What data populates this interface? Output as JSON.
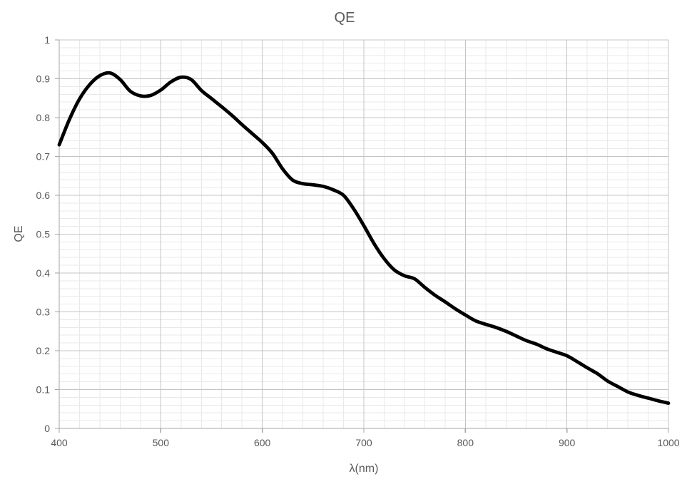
{
  "style": {
    "background": "#ffffff",
    "text_color": "#595959",
    "axis_color": "#a6a6a6",
    "major_grid_color": "#c4c4c4",
    "minor_grid_color": "#e9e9e9",
    "curve_color": "#000000",
    "curve_width": 4.8
  },
  "chart_data": {
    "type": "line",
    "title": "QE",
    "xlabel": "λ(nm)",
    "ylabel": "QE",
    "xlim": [
      400,
      1000
    ],
    "ylim": [
      0,
      1
    ],
    "x_major_step": 100,
    "x_minor_step": 20,
    "y_major_step": 0.1,
    "y_minor_step": 0.02,
    "x_tick_labels": [
      "400",
      "500",
      "600",
      "700",
      "800",
      "900",
      "1000"
    ],
    "y_tick_labels": [
      "0",
      "0.1",
      "0.2",
      "0.3",
      "0.4",
      "0.5",
      "0.6",
      "0.7",
      "0.8",
      "0.9",
      "1"
    ],
    "grid": {
      "major": true,
      "minor": true
    },
    "legend": "none",
    "series": [
      {
        "name": "QE",
        "x": [
          400,
          410,
          420,
          430,
          440,
          450,
          460,
          470,
          480,
          490,
          500,
          510,
          520,
          530,
          540,
          550,
          560,
          570,
          580,
          590,
          600,
          610,
          620,
          630,
          640,
          650,
          660,
          670,
          680,
          690,
          700,
          710,
          720,
          730,
          740,
          750,
          760,
          770,
          780,
          790,
          800,
          810,
          820,
          830,
          840,
          850,
          860,
          870,
          880,
          890,
          900,
          910,
          920,
          930,
          940,
          950,
          960,
          970,
          980,
          990,
          1000
        ],
        "values": [
          0.73,
          0.795,
          0.848,
          0.885,
          0.908,
          0.915,
          0.898,
          0.868,
          0.856,
          0.857,
          0.871,
          0.892,
          0.904,
          0.898,
          0.87,
          0.849,
          0.828,
          0.806,
          0.782,
          0.759,
          0.736,
          0.708,
          0.668,
          0.639,
          0.63,
          0.627,
          0.623,
          0.614,
          0.6,
          0.565,
          0.522,
          0.476,
          0.437,
          0.408,
          0.393,
          0.385,
          0.363,
          0.343,
          0.326,
          0.308,
          0.292,
          0.277,
          0.268,
          0.26,
          0.25,
          0.238,
          0.226,
          0.217,
          0.205,
          0.196,
          0.187,
          0.172,
          0.156,
          0.141,
          0.122,
          0.108,
          0.094,
          0.085,
          0.078,
          0.071,
          0.065
        ]
      }
    ]
  }
}
